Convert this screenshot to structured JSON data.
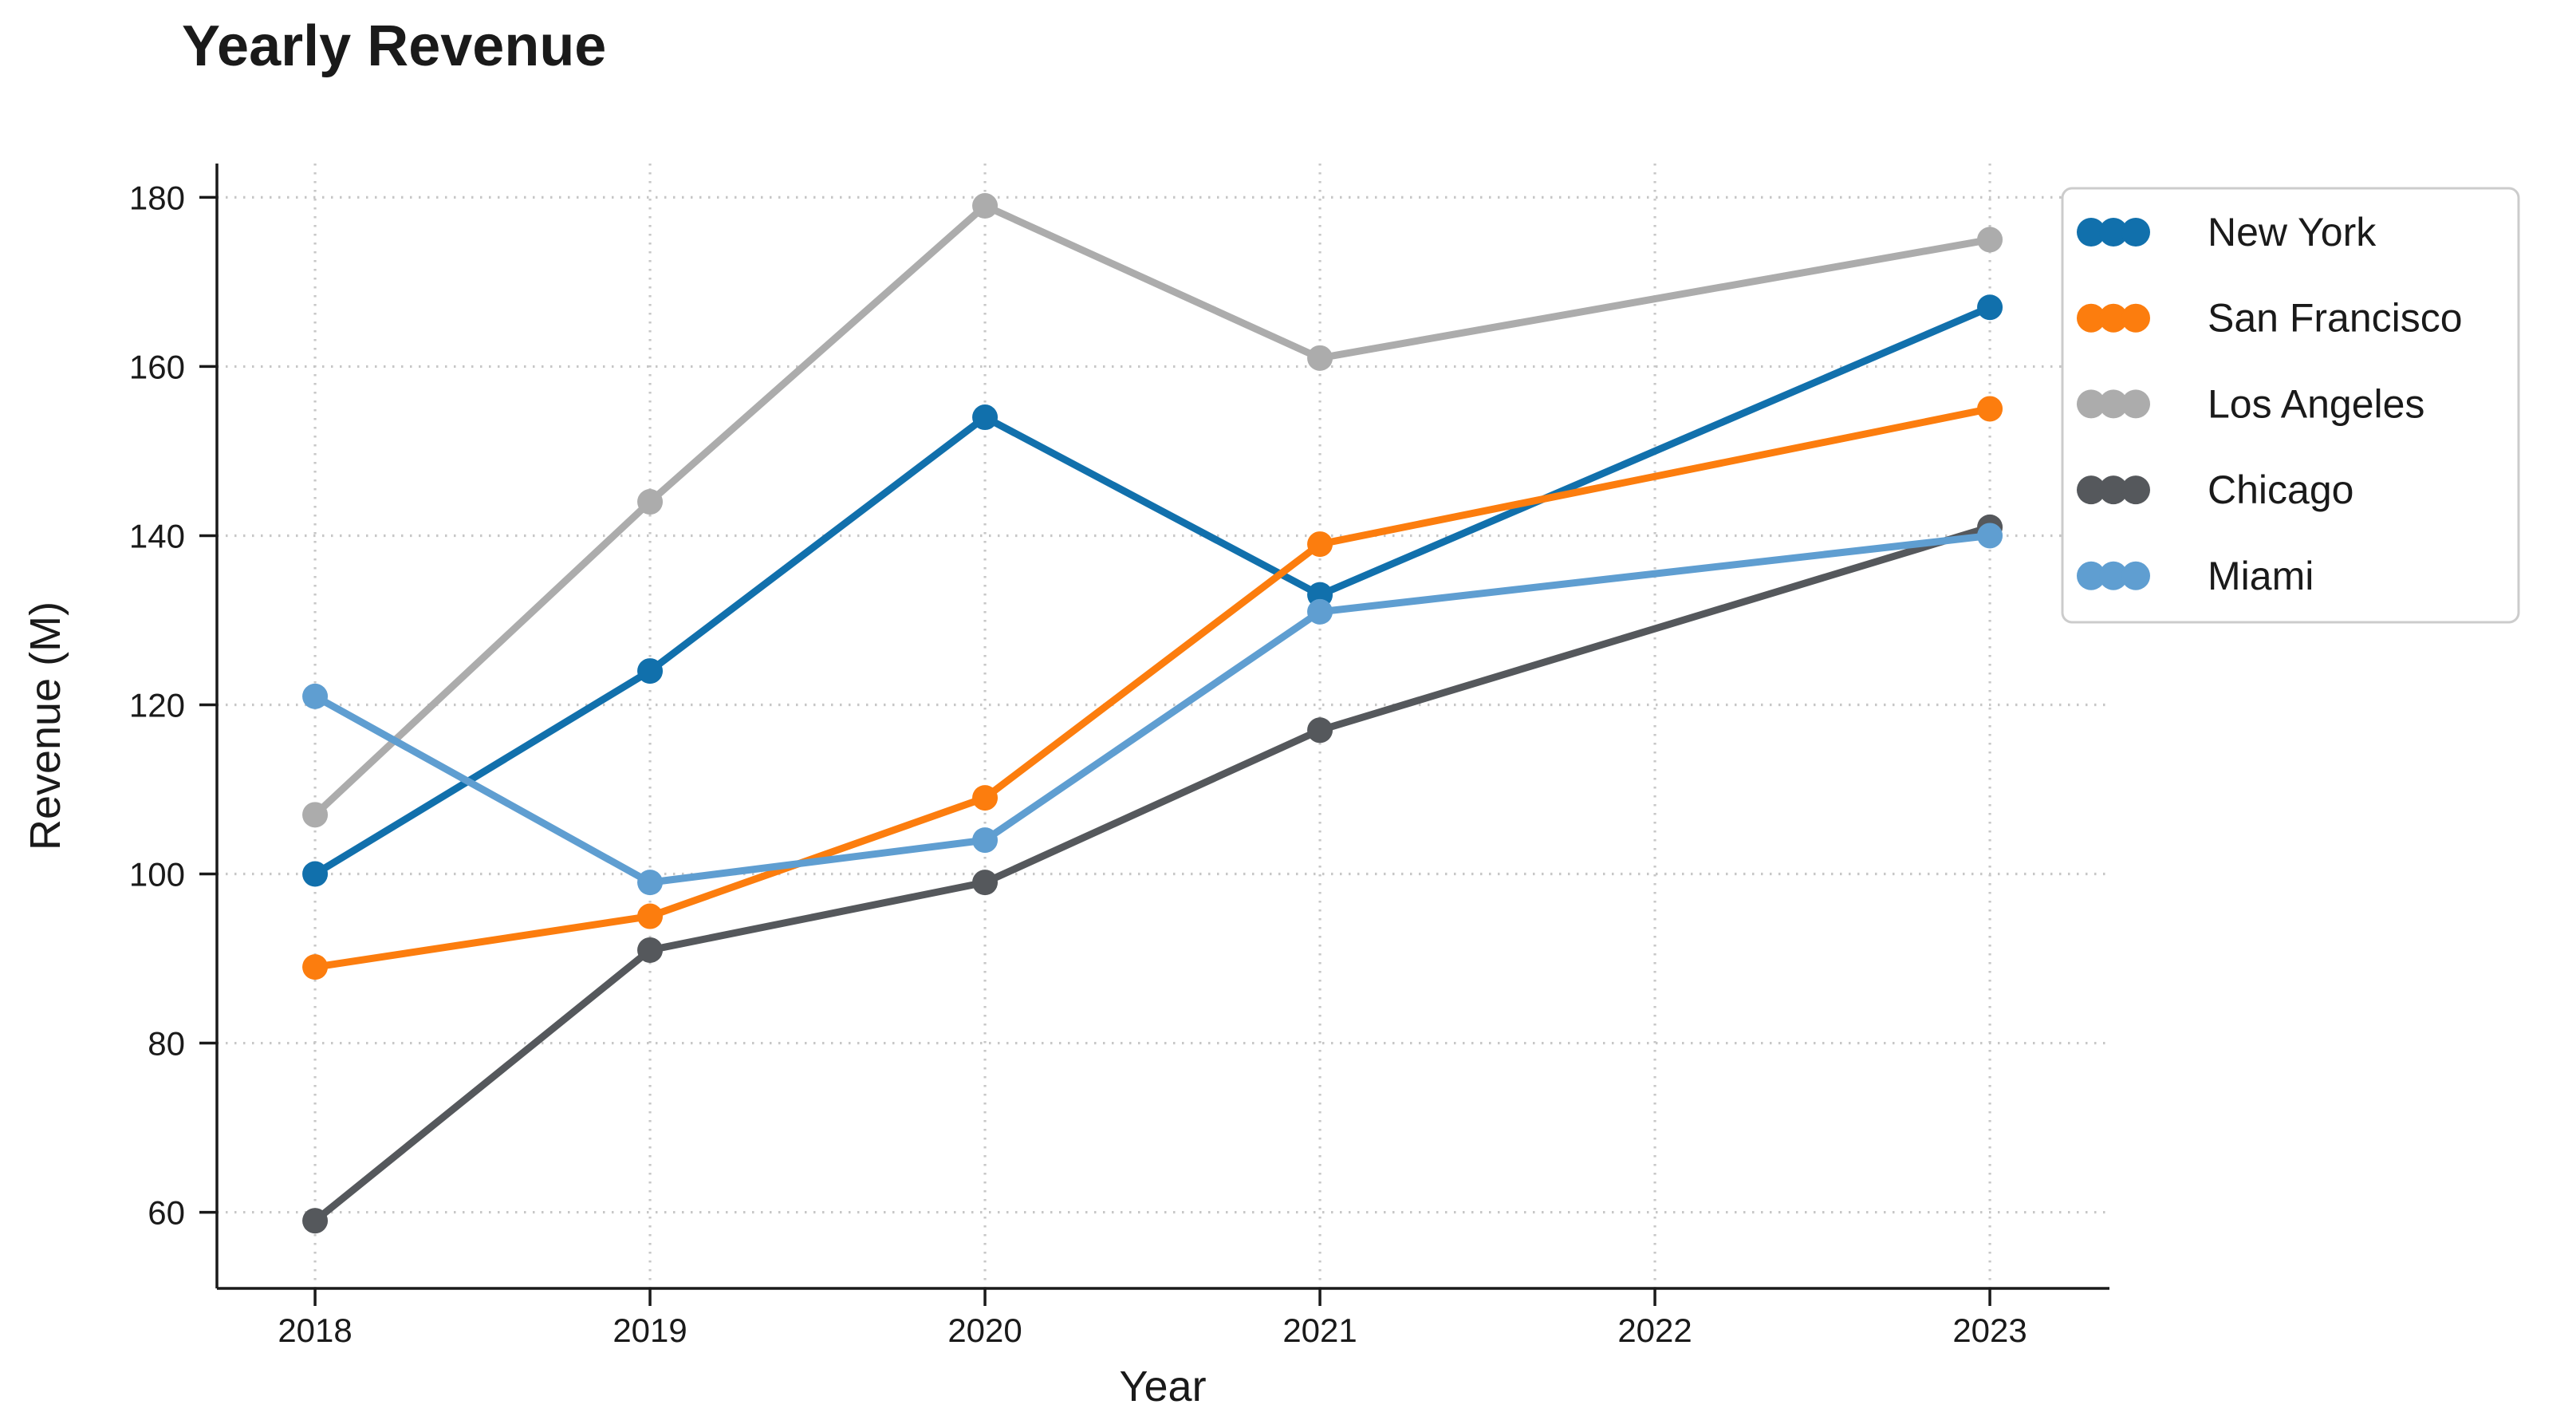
{
  "title": "Yearly Revenue",
  "chart_data": {
    "type": "line",
    "title": "Yearly Revenue",
    "xlabel": "Year",
    "ylabel": "Revenue (M)",
    "x": [
      2018,
      2019,
      2020,
      2021,
      2023
    ],
    "series": [
      {
        "name": "New York",
        "color": "#1170ac",
        "values": [
          100,
          124,
          154,
          133,
          167
        ]
      },
      {
        "name": "San Francisco",
        "color": "#fc7d0e",
        "values": [
          89,
          95,
          109,
          139,
          155
        ]
      },
      {
        "name": "Los Angeles",
        "color": "#acacac",
        "values": [
          107,
          144,
          179,
          161,
          175
        ]
      },
      {
        "name": "Chicago",
        "color": "#55585c",
        "values": [
          59,
          91,
          99,
          117,
          141
        ]
      },
      {
        "name": "Miami",
        "color": "#5f9ed1",
        "values": [
          121,
          99,
          104,
          131,
          140
        ]
      }
    ],
    "xticks": [
      2018,
      2019,
      2020,
      2021,
      2022,
      2023
    ],
    "yticks": [
      60,
      80,
      100,
      120,
      140,
      160,
      180
    ],
    "xlim": [
      2017.707,
      2023.357
    ],
    "ylim": [
      51,
      184
    ],
    "grid": "dotted, both axes",
    "legend_position": "right, outside plot",
    "marker": "filled circle",
    "colors": {
      "grid": "#c7c7c7",
      "axis": "#1a1a1a",
      "text": "#1a1a1a",
      "legend_border": "#cccccc",
      "background": "#ffffff"
    }
  }
}
